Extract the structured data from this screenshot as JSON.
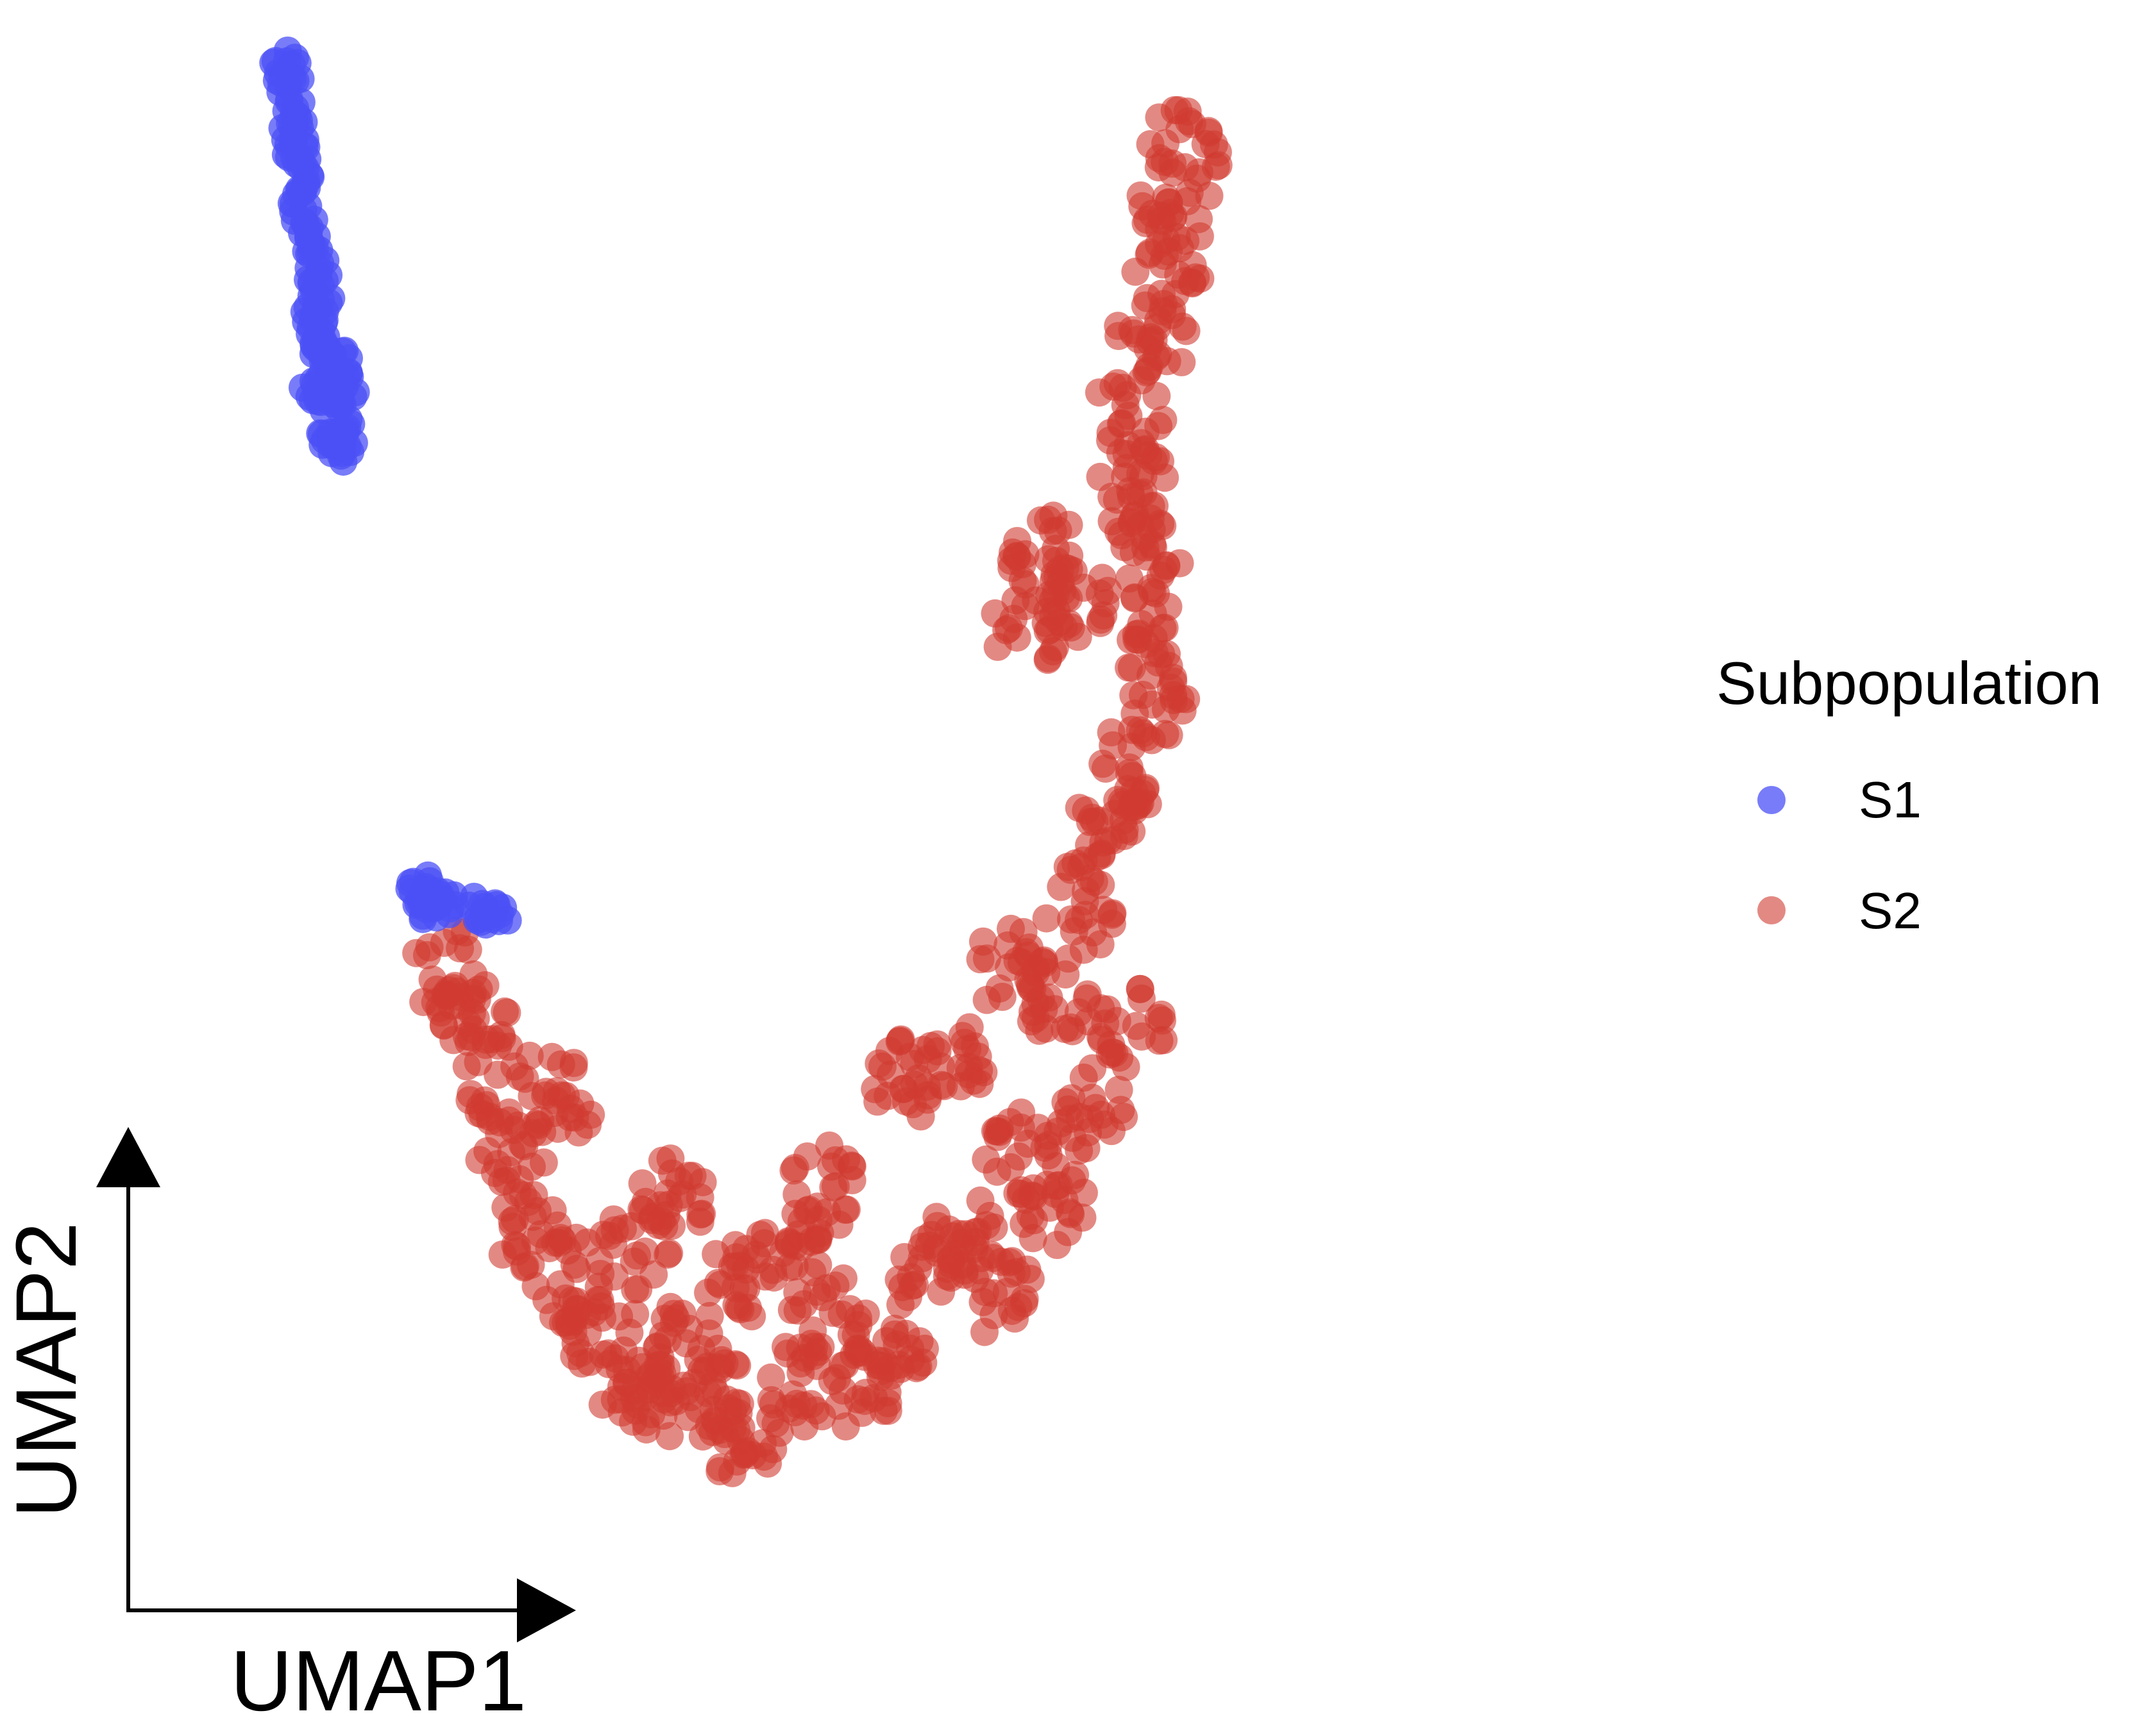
{
  "chart_data": {
    "type": "scatter",
    "title": "",
    "xlabel": "UMAP1",
    "ylabel": "UMAP2",
    "xlim": [
      0,
      100
    ],
    "ylim": [
      0,
      100
    ],
    "grid": false,
    "legend": {
      "title": "Subpopulation",
      "position": "right"
    },
    "series": [
      {
        "name": "S1",
        "color": "#4B50F5",
        "alpha": 0.75,
        "clusters": [
          {
            "x": 9.2,
            "y": 98.5
          },
          {
            "x": 9.4,
            "y": 97.0
          },
          {
            "x": 9.6,
            "y": 95.5
          },
          {
            "x": 9.8,
            "y": 94.0
          },
          {
            "x": 9.9,
            "y": 92.5
          },
          {
            "x": 10.1,
            "y": 91.0
          },
          {
            "x": 10.3,
            "y": 89.5
          },
          {
            "x": 10.6,
            "y": 88.0
          },
          {
            "x": 10.9,
            "y": 86.5
          },
          {
            "x": 11.3,
            "y": 85.0
          },
          {
            "x": 11.6,
            "y": 83.5
          },
          {
            "x": 11.2,
            "y": 82.0
          },
          {
            "x": 11.0,
            "y": 80.5
          },
          {
            "x": 11.9,
            "y": 79.8
          },
          {
            "x": 13.0,
            "y": 79.0
          },
          {
            "x": 12.0,
            "y": 78.0
          },
          {
            "x": 13.6,
            "y": 77.5
          },
          {
            "x": 12.5,
            "y": 76.5
          },
          {
            "x": 11.2,
            "y": 77.5
          },
          {
            "x": 12.9,
            "y": 75.0
          },
          {
            "x": 12.2,
            "y": 74.0
          },
          {
            "x": 13.3,
            "y": 73.5
          },
          {
            "x": 18.4,
            "y": 45.5
          },
          {
            "x": 19.2,
            "y": 44.8
          },
          {
            "x": 20.3,
            "y": 44.3
          },
          {
            "x": 22.2,
            "y": 43.8
          },
          {
            "x": 23.8,
            "y": 43.4
          },
          {
            "x": 19.0,
            "y": 44.0
          }
        ]
      },
      {
        "name": "S2",
        "color": "#D03A30",
        "alpha": 0.6,
        "clusters": [
          {
            "x": 20.5,
            "y": 40.0
          },
          {
            "x": 22.5,
            "y": 37.0
          },
          {
            "x": 24.0,
            "y": 33.0
          },
          {
            "x": 25.0,
            "y": 28.0
          },
          {
            "x": 26.5,
            "y": 23.0
          },
          {
            "x": 29.0,
            "y": 20.0
          },
          {
            "x": 31.0,
            "y": 17.0
          },
          {
            "x": 33.0,
            "y": 14.0
          },
          {
            "x": 35.0,
            "y": 12.0
          },
          {
            "x": 37.5,
            "y": 16.0
          },
          {
            "x": 39.0,
            "y": 12.5
          },
          {
            "x": 41.5,
            "y": 9.0
          },
          {
            "x": 44.5,
            "y": 13.0
          },
          {
            "x": 47.0,
            "y": 18.0
          },
          {
            "x": 49.0,
            "y": 13.0
          },
          {
            "x": 51.5,
            "y": 16.0
          },
          {
            "x": 54.0,
            "y": 20.0
          },
          {
            "x": 56.5,
            "y": 23.0
          },
          {
            "x": 59.0,
            "y": 19.0
          },
          {
            "x": 62.5,
            "y": 25.0
          },
          {
            "x": 65.0,
            "y": 31.0
          },
          {
            "x": 68.0,
            "y": 36.0
          },
          {
            "x": 63.0,
            "y": 38.0
          },
          {
            "x": 59.5,
            "y": 40.0
          },
          {
            "x": 52.5,
            "y": 33.0
          },
          {
            "x": 55.5,
            "y": 34.0
          },
          {
            "x": 36.0,
            "y": 25.0
          },
          {
            "x": 28.5,
            "y": 32.0
          },
          {
            "x": 44.0,
            "y": 22.0
          },
          {
            "x": 64.5,
            "y": 44.0
          },
          {
            "x": 66.5,
            "y": 49.0
          },
          {
            "x": 68.0,
            "y": 53.0
          },
          {
            "x": 69.5,
            "y": 57.5
          },
          {
            "x": 70.0,
            "y": 62.0
          },
          {
            "x": 69.0,
            "y": 66.5
          },
          {
            "x": 68.2,
            "y": 71.0
          },
          {
            "x": 67.8,
            "y": 76.0
          },
          {
            "x": 69.5,
            "y": 80.5
          },
          {
            "x": 70.5,
            "y": 85.0
          },
          {
            "x": 71.0,
            "y": 89.0
          },
          {
            "x": 71.8,
            "y": 93.0
          },
          {
            "x": 62.0,
            "y": 67.0
          },
          {
            "x": 64.0,
            "y": 64.0
          },
          {
            "x": 61.0,
            "y": 62.0
          },
          {
            "x": 46.5,
            "y": 26.0
          },
          {
            "x": 40.5,
            "y": 20.0
          },
          {
            "x": 33.5,
            "y": 22.0
          },
          {
            "x": 60.5,
            "y": 28.0
          }
        ]
      }
    ]
  },
  "axes_arrows": {
    "x_label": "UMAP1",
    "y_label": "UMAP2"
  }
}
